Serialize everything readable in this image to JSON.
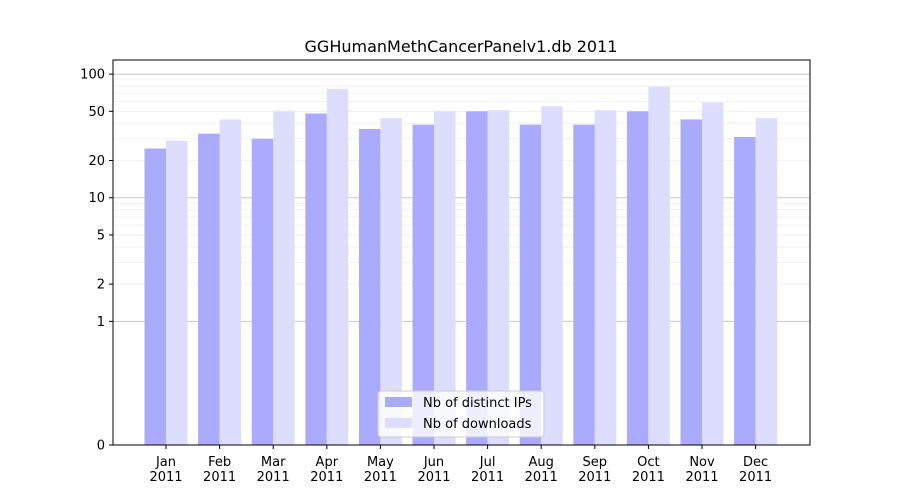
{
  "chart_data": {
    "type": "bar",
    "title": "GGHumanMethCancerPanelv1.db 2011",
    "xlabel": "",
    "ylabel": "",
    "y_scale": "symlog",
    "y_ticks": [
      0,
      1,
      2,
      5,
      10,
      20,
      50,
      100
    ],
    "y_tick_labels": [
      "0",
      "1",
      "2",
      "5",
      "10",
      "20",
      "50",
      "100"
    ],
    "ylim": [
      0,
      130
    ],
    "grid": true,
    "legend_position": "bottom-center",
    "categories": [
      "Jan\n2011",
      "Feb\n2011",
      "Mar\n2011",
      "Apr\n2011",
      "May\n2011",
      "Jun\n2011",
      "Jul\n2011",
      "Aug\n2011",
      "Sep\n2011",
      "Oct\n2011",
      "Nov\n2011",
      "Dec\n2011"
    ],
    "series": [
      {
        "name": "Nb of distinct IPs",
        "color": "#aaaaff",
        "values": [
          25,
          33,
          30,
          48,
          36,
          39,
          50,
          39,
          39,
          50,
          43,
          31
        ]
      },
      {
        "name": "Nb of downloads",
        "color": "#ddddff",
        "values": [
          29,
          43,
          50,
          76,
          44,
          50,
          51,
          55,
          51,
          79,
          59,
          44
        ]
      }
    ]
  }
}
